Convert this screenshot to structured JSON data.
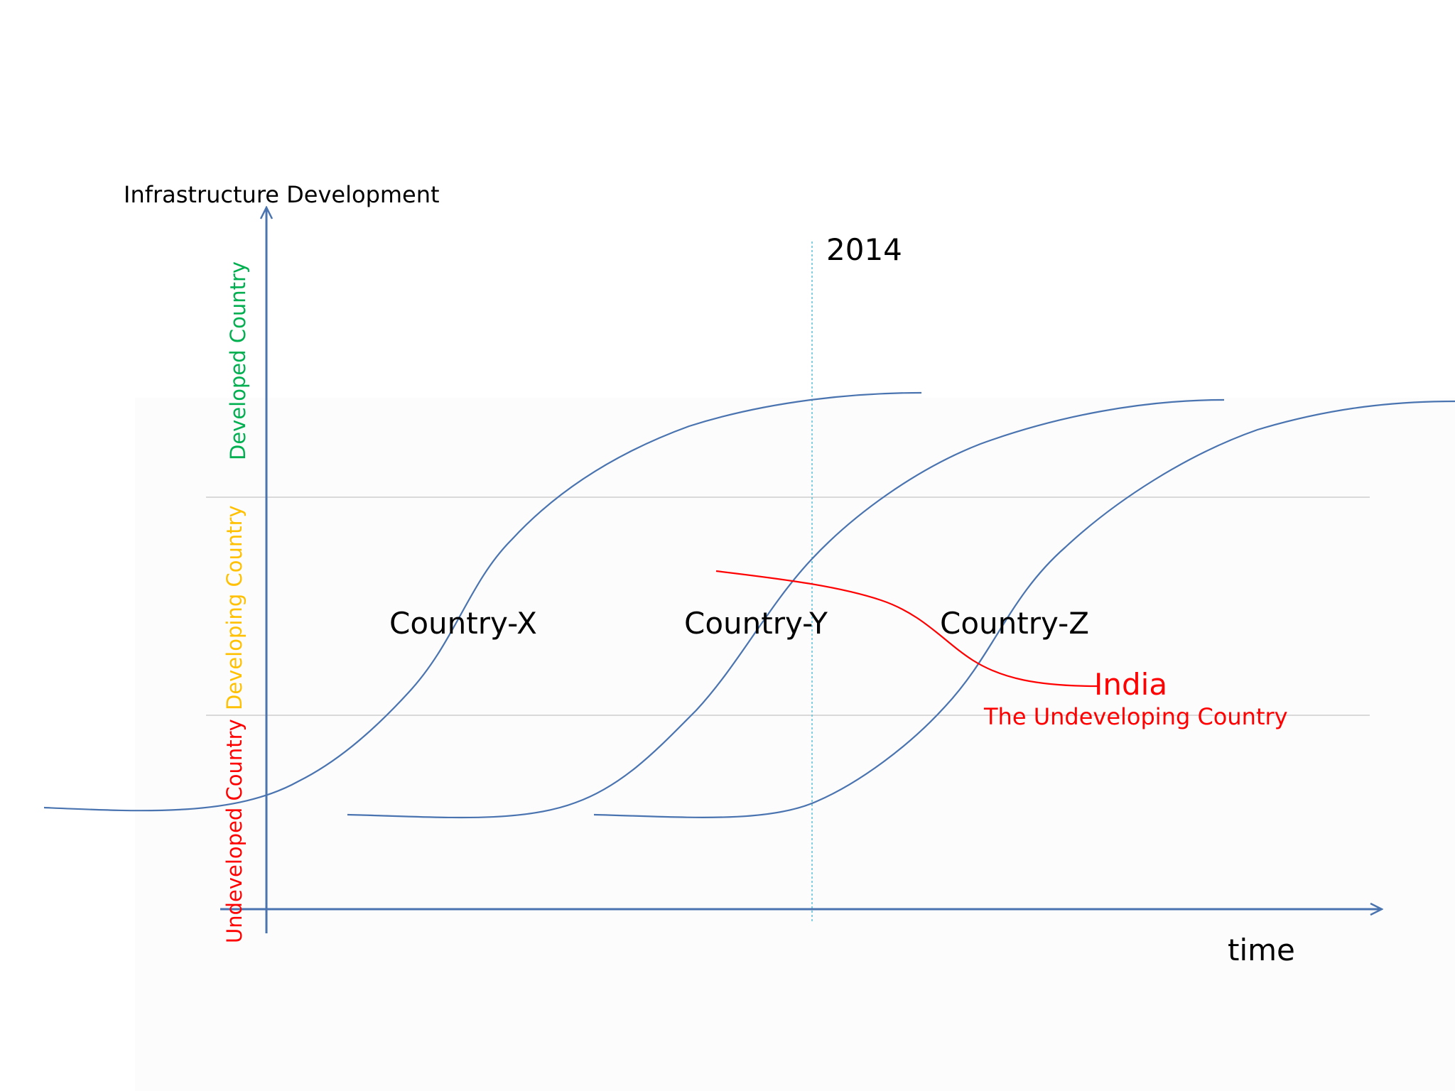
{
  "y_axis_label": "Infrastructure Development",
  "x_axis_label": "time",
  "marker_label": "2014",
  "bands": [
    {
      "label": "Developed Country",
      "color": "#00b050"
    },
    {
      "label": "Developing Country",
      "color": "#ffc000"
    },
    {
      "label": "Undeveloped Country",
      "color": "#ff0000"
    }
  ],
  "curves": [
    {
      "label": "Country-X",
      "color": "#4a74b0"
    },
    {
      "label": "Country-Y",
      "color": "#4a74b0"
    },
    {
      "label": "Country-Z",
      "color": "#4a74b0"
    }
  ],
  "india": {
    "label": "India",
    "subtitle": "The Undeveloping Country",
    "color": "#ff0000"
  },
  "colors": {
    "axis": "#4a74b0",
    "gridline": "#d9d9d9",
    "marker_line": "#5bbfd6",
    "text": "#000000"
  }
}
